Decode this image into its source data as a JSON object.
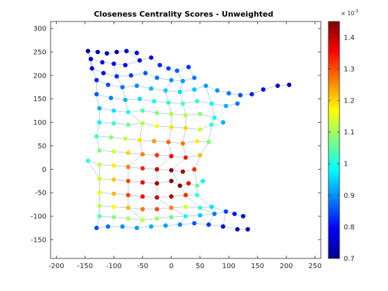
{
  "chart_data": {
    "type": "scatter",
    "title": "Closeness Centrality Scores - Unweighted",
    "xlabel": "",
    "ylabel": "",
    "xlim": [
      -210,
      260
    ],
    "ylim": [
      -190,
      315
    ],
    "xticks": [
      -200,
      -150,
      -100,
      -50,
      0,
      50,
      100,
      150,
      200,
      250
    ],
    "yticks": [
      300,
      250,
      200,
      150,
      100,
      50,
      0,
      -50,
      -100,
      -150
    ],
    "grid": false,
    "colormap": "jet",
    "colorbar": {
      "clim": [
        0.7,
        1.45
      ],
      "ticks": [
        1.4,
        1.3,
        1.2,
        1.1,
        1.0,
        0.9,
        0.8,
        0.7
      ],
      "tick_labels": [
        "1.4",
        "1.3",
        "1.2",
        "1.1",
        "1",
        "0.9",
        "0.8",
        "0.7"
      ],
      "exponent_label": "× 10",
      "exponent_power": "-5"
    },
    "description_of_layout": "",
    "nodes": [
      [
        -145,
        252,
        0.72
      ],
      [
        -128,
        250,
        0.73
      ],
      [
        -112,
        247,
        0.74
      ],
      [
        -95,
        250,
        0.73
      ],
      [
        -78,
        252,
        0.75
      ],
      [
        -60,
        248,
        0.76
      ],
      [
        -140,
        235,
        0.74
      ],
      [
        -120,
        228,
        0.76
      ],
      [
        -100,
        225,
        0.78
      ],
      [
        -80,
        222,
        0.8
      ],
      [
        -55,
        232,
        0.78
      ],
      [
        -35,
        238,
        0.79
      ],
      [
        -20,
        222,
        0.82
      ],
      [
        -5,
        215,
        0.84
      ],
      [
        10,
        210,
        0.86
      ],
      [
        30,
        218,
        0.83
      ],
      [
        -138,
        215,
        0.77
      ],
      [
        -118,
        205,
        0.8
      ],
      [
        -95,
        198,
        0.83
      ],
      [
        -70,
        200,
        0.84
      ],
      [
        -45,
        205,
        0.86
      ],
      [
        -25,
        195,
        0.88
      ],
      [
        0,
        190,
        0.9
      ],
      [
        20,
        188,
        0.91
      ],
      [
        40,
        195,
        0.88
      ],
      [
        -130,
        190,
        0.82
      ],
      [
        -110,
        180,
        0.85
      ],
      [
        -85,
        175,
        0.88
      ],
      [
        -60,
        178,
        0.9
      ],
      [
        -35,
        172,
        0.93
      ],
      [
        -10,
        168,
        0.95
      ],
      [
        15,
        165,
        0.96
      ],
      [
        40,
        170,
        0.94
      ],
      [
        60,
        178,
        0.91
      ],
      [
        80,
        168,
        0.9
      ],
      [
        100,
        162,
        0.88
      ],
      [
        120,
        158,
        0.85
      ],
      [
        140,
        160,
        0.82
      ],
      [
        160,
        170,
        0.79
      ],
      [
        185,
        178,
        0.76
      ],
      [
        205,
        180,
        0.73
      ],
      [
        -130,
        160,
        0.86
      ],
      [
        -105,
        152,
        0.89
      ],
      [
        -80,
        148,
        0.93
      ],
      [
        -55,
        150,
        0.96
      ],
      [
        -30,
        145,
        0.99
      ],
      [
        -5,
        142,
        1.02
      ],
      [
        20,
        140,
        1.04
      ],
      [
        45,
        145,
        1.02
      ],
      [
        70,
        140,
        0.98
      ],
      [
        95,
        135,
        0.93
      ],
      [
        115,
        140,
        0.88
      ],
      [
        -125,
        130,
        0.92
      ],
      [
        -100,
        125,
        0.96
      ],
      [
        -75,
        122,
        1.0
      ],
      [
        -50,
        125,
        1.04
      ],
      [
        -25,
        120,
        1.08
      ],
      [
        0,
        118,
        1.11
      ],
      [
        25,
        115,
        1.12
      ],
      [
        50,
        118,
        1.08
      ],
      [
        75,
        110,
        1.0
      ],
      [
        90,
        100,
        0.92
      ],
      [
        -125,
        100,
        0.98
      ],
      [
        -100,
        98,
        1.02
      ],
      [
        -75,
        95,
        1.07
      ],
      [
        -50,
        98,
        1.12
      ],
      [
        -25,
        92,
        1.16
      ],
      [
        0,
        90,
        1.19
      ],
      [
        25,
        88,
        1.2
      ],
      [
        50,
        85,
        1.13
      ],
      [
        70,
        95,
        1.02
      ],
      [
        -130,
        70,
        1.03
      ],
      [
        -105,
        68,
        1.08
      ],
      [
        -80,
        65,
        1.13
      ],
      [
        -55,
        62,
        1.19
      ],
      [
        -30,
        60,
        1.24
      ],
      [
        -5,
        58,
        1.28
      ],
      [
        20,
        55,
        1.27
      ],
      [
        45,
        60,
        1.18
      ],
      [
        65,
        58,
        1.08
      ],
      [
        -125,
        40,
        1.08
      ],
      [
        -100,
        38,
        1.14
      ],
      [
        -75,
        35,
        1.2
      ],
      [
        -50,
        32,
        1.26
      ],
      [
        -25,
        30,
        1.32
      ],
      [
        0,
        28,
        1.36
      ],
      [
        25,
        25,
        1.34
      ],
      [
        50,
        30,
        1.22
      ],
      [
        -145,
        18,
        1.02
      ],
      [
        -125,
        10,
        1.12
      ],
      [
        -100,
        8,
        1.18
      ],
      [
        -75,
        5,
        1.26
      ],
      [
        -50,
        2,
        1.33
      ],
      [
        -25,
        0,
        1.39
      ],
      [
        0,
        -2,
        1.43
      ],
      [
        20,
        -5,
        1.42
      ],
      [
        40,
        0,
        1.32
      ],
      [
        -125,
        -20,
        1.14
      ],
      [
        -100,
        -22,
        1.21
      ],
      [
        -75,
        -25,
        1.3
      ],
      [
        -50,
        -28,
        1.37
      ],
      [
        -25,
        -30,
        1.42
      ],
      [
        0,
        -25,
        1.44
      ],
      [
        15,
        -35,
        1.45
      ],
      [
        30,
        -30,
        1.38
      ],
      [
        45,
        -35,
        1.05
      ],
      [
        55,
        -25,
        0.98
      ],
      [
        -125,
        -50,
        1.16
      ],
      [
        -100,
        -52,
        1.22
      ],
      [
        -75,
        -55,
        1.3
      ],
      [
        -50,
        -58,
        1.36
      ],
      [
        -25,
        -60,
        1.4
      ],
      [
        0,
        -58,
        1.41
      ],
      [
        25,
        -55,
        1.32
      ],
      [
        45,
        -55,
        1.02
      ],
      [
        -125,
        -78,
        1.12
      ],
      [
        -100,
        -80,
        1.17
      ],
      [
        -75,
        -82,
        1.22
      ],
      [
        -50,
        -85,
        1.27
      ],
      [
        -25,
        -85,
        1.3
      ],
      [
        0,
        -82,
        1.26
      ],
      [
        25,
        -80,
        1.14
      ],
      [
        50,
        -82,
        1.02
      ],
      [
        70,
        -80,
        0.96
      ],
      [
        -125,
        -100,
        1.05
      ],
      [
        -100,
        -102,
        1.08
      ],
      [
        -75,
        -105,
        1.11
      ],
      [
        -50,
        -108,
        1.12
      ],
      [
        -25,
        -105,
        1.1
      ],
      [
        0,
        -102,
        1.06
      ],
      [
        25,
        -100,
        1.0
      ],
      [
        50,
        -98,
        0.94
      ],
      [
        75,
        -95,
        0.88
      ],
      [
        95,
        -90,
        0.84
      ],
      [
        110,
        -95,
        0.8
      ],
      [
        125,
        -100,
        0.77
      ],
      [
        -130,
        -125,
        0.85
      ],
      [
        -110,
        -122,
        0.88
      ],
      [
        -85,
        -122,
        0.9
      ],
      [
        -60,
        -125,
        0.91
      ],
      [
        -35,
        -122,
        0.92
      ],
      [
        -10,
        -120,
        0.91
      ],
      [
        15,
        -118,
        0.89
      ],
      [
        40,
        -115,
        0.86
      ],
      [
        65,
        -118,
        0.83
      ],
      [
        90,
        -122,
        0.79
      ],
      [
        115,
        -128,
        0.75
      ],
      [
        133,
        -128,
        0.73
      ]
    ],
    "edges": [
      [
        0,
        1
      ],
      [
        1,
        2
      ],
      [
        2,
        3
      ],
      [
        3,
        4
      ],
      [
        4,
        5
      ],
      [
        0,
        6
      ],
      [
        6,
        7
      ],
      [
        7,
        8
      ],
      [
        8,
        9
      ],
      [
        9,
        10
      ],
      [
        10,
        11
      ],
      [
        11,
        12
      ],
      [
        12,
        13
      ],
      [
        13,
        14
      ],
      [
        14,
        15
      ],
      [
        6,
        16
      ],
      [
        16,
        17
      ],
      [
        17,
        18
      ],
      [
        18,
        19
      ],
      [
        19,
        20
      ],
      [
        20,
        21
      ],
      [
        21,
        22
      ],
      [
        22,
        23
      ],
      [
        23,
        24
      ],
      [
        16,
        25
      ],
      [
        25,
        26
      ],
      [
        26,
        27
      ],
      [
        27,
        28
      ],
      [
        28,
        29
      ],
      [
        29,
        30
      ],
      [
        30,
        31
      ],
      [
        31,
        32
      ],
      [
        32,
        33
      ],
      [
        33,
        34
      ],
      [
        34,
        35
      ],
      [
        35,
        36
      ],
      [
        36,
        37
      ],
      [
        37,
        38
      ],
      [
        38,
        39
      ],
      [
        39,
        40
      ],
      [
        25,
        41
      ],
      [
        41,
        42
      ],
      [
        42,
        43
      ],
      [
        43,
        44
      ],
      [
        44,
        45
      ],
      [
        45,
        46
      ],
      [
        46,
        47
      ],
      [
        47,
        48
      ],
      [
        48,
        49
      ],
      [
        49,
        50
      ],
      [
        50,
        51
      ],
      [
        41,
        52
      ],
      [
        52,
        53
      ],
      [
        53,
        54
      ],
      [
        54,
        55
      ],
      [
        55,
        56
      ],
      [
        56,
        57
      ],
      [
        57,
        58
      ],
      [
        58,
        59
      ],
      [
        59,
        60
      ],
      [
        60,
        61
      ],
      [
        52,
        62
      ],
      [
        62,
        63
      ],
      [
        63,
        64
      ],
      [
        64,
        65
      ],
      [
        65,
        66
      ],
      [
        66,
        67
      ],
      [
        67,
        68
      ],
      [
        68,
        69
      ],
      [
        69,
        70
      ],
      [
        62,
        71
      ],
      [
        71,
        72
      ],
      [
        72,
        73
      ],
      [
        73,
        74
      ],
      [
        74,
        75
      ],
      [
        75,
        76
      ],
      [
        76,
        77
      ],
      [
        77,
        78
      ],
      [
        78,
        79
      ],
      [
        71,
        80
      ],
      [
        80,
        81
      ],
      [
        81,
        82
      ],
      [
        82,
        83
      ],
      [
        83,
        84
      ],
      [
        84,
        85
      ],
      [
        85,
        86
      ],
      [
        86,
        87
      ],
      [
        88,
        89
      ],
      [
        89,
        90
      ],
      [
        90,
        91
      ],
      [
        91,
        92
      ],
      [
        92,
        93
      ],
      [
        93,
        94
      ],
      [
        94,
        95
      ],
      [
        95,
        96
      ],
      [
        89,
        97
      ],
      [
        97,
        98
      ],
      [
        98,
        99
      ],
      [
        99,
        100
      ],
      [
        100,
        101
      ],
      [
        101,
        102
      ],
      [
        102,
        103
      ],
      [
        103,
        104
      ],
      [
        104,
        105
      ],
      [
        105,
        106
      ],
      [
        97,
        107
      ],
      [
        107,
        108
      ],
      [
        108,
        109
      ],
      [
        109,
        110
      ],
      [
        110,
        111
      ],
      [
        111,
        112
      ],
      [
        112,
        113
      ],
      [
        113,
        114
      ],
      [
        107,
        115
      ],
      [
        115,
        116
      ],
      [
        116,
        117
      ],
      [
        117,
        118
      ],
      [
        118,
        119
      ],
      [
        119,
        120
      ],
      [
        120,
        121
      ],
      [
        121,
        122
      ],
      [
        122,
        123
      ],
      [
        115,
        124
      ],
      [
        124,
        125
      ],
      [
        125,
        126
      ],
      [
        126,
        127
      ],
      [
        127,
        128
      ],
      [
        128,
        129
      ],
      [
        129,
        130
      ],
      [
        130,
        131
      ],
      [
        131,
        132
      ],
      [
        132,
        133
      ],
      [
        133,
        134
      ],
      [
        134,
        135
      ],
      [
        124,
        136
      ],
      [
        136,
        137
      ],
      [
        137,
        138
      ],
      [
        138,
        139
      ],
      [
        139,
        140
      ],
      [
        140,
        141
      ],
      [
        141,
        142
      ],
      [
        142,
        143
      ],
      [
        143,
        144
      ],
      [
        144,
        145
      ],
      [
        145,
        146
      ],
      [
        146,
        147
      ],
      [
        8,
        18
      ],
      [
        18,
        27
      ],
      [
        27,
        43
      ],
      [
        43,
        54
      ],
      [
        54,
        65
      ],
      [
        65,
        74
      ],
      [
        74,
        83
      ],
      [
        83,
        91
      ],
      [
        91,
        99
      ],
      [
        99,
        109
      ],
      [
        109,
        117
      ],
      [
        117,
        127
      ],
      [
        127,
        139
      ],
      [
        22,
        30
      ],
      [
        30,
        46
      ],
      [
        46,
        57
      ],
      [
        57,
        67
      ],
      [
        67,
        76
      ],
      [
        76,
        85
      ],
      [
        85,
        93
      ],
      [
        93,
        101
      ],
      [
        101,
        111
      ],
      [
        111,
        120
      ],
      [
        120,
        130
      ],
      [
        130,
        142
      ],
      [
        14,
        23
      ],
      [
        23,
        31
      ],
      [
        31,
        47
      ],
      [
        47,
        58
      ],
      [
        58,
        68
      ],
      [
        68,
        77
      ],
      [
        77,
        86
      ],
      [
        86,
        94
      ],
      [
        94,
        103
      ],
      [
        103,
        113
      ],
      [
        113,
        122
      ],
      [
        122,
        132
      ],
      [
        132,
        144
      ],
      [
        33,
        49
      ],
      [
        49,
        60
      ],
      [
        60,
        70
      ],
      [
        70,
        79
      ],
      [
        79,
        87
      ],
      [
        87,
        96
      ],
      [
        96,
        105
      ],
      [
        105,
        114
      ],
      [
        114,
        123
      ],
      [
        123,
        133
      ],
      [
        133,
        145
      ],
      [
        88,
        97
      ],
      [
        0,
        16
      ],
      [
        4,
        10
      ],
      [
        15,
        24
      ]
    ]
  }
}
